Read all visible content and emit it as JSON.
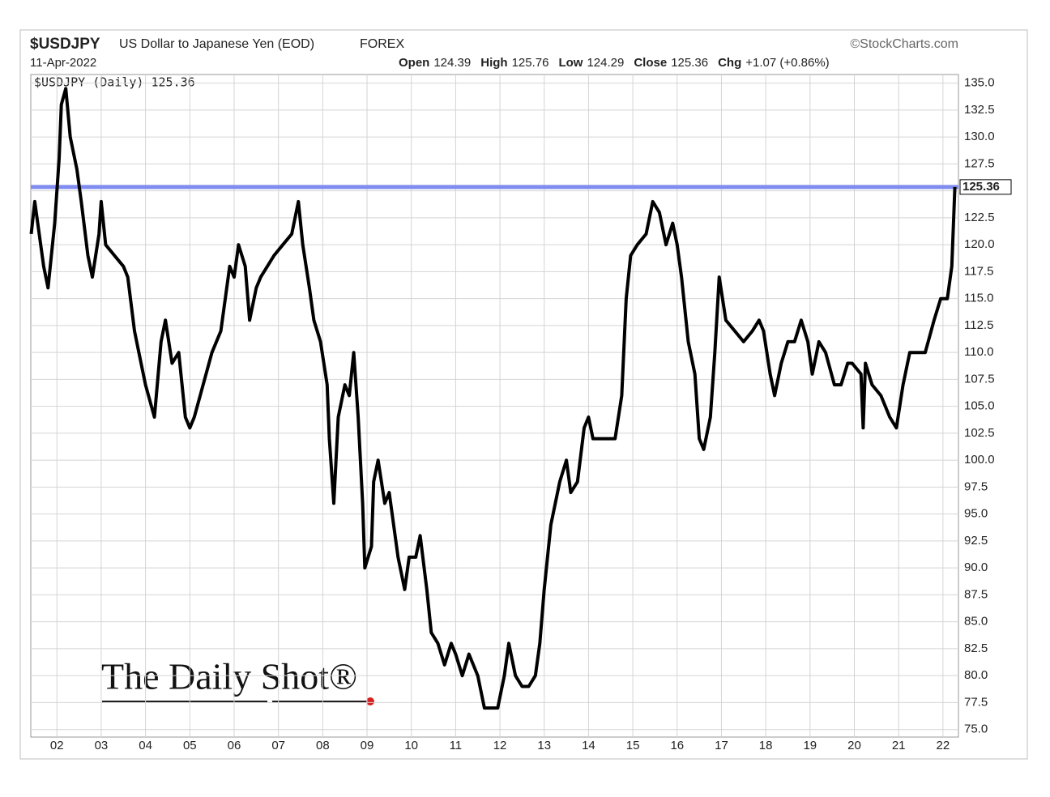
{
  "chart_data": {
    "type": "line",
    "title": "$USDJPY",
    "subtitle": "US Dollar to Japanese Yen (EOD)",
    "exchange": "FOREX",
    "source": "©StockCharts.com",
    "date": "11-Apr-2022",
    "quote": [
      {
        "label": "Open",
        "value": 124.39
      },
      {
        "label": "High",
        "value": 125.76
      },
      {
        "label": "Low",
        "value": 124.29
      },
      {
        "label": "Close",
        "value": 125.36
      },
      {
        "label": "Chg",
        "value": "+1.07 (+0.86%)"
      }
    ],
    "watermark": "The Daily Shot®",
    "last_value": 125.36,
    "last_line_color": "#7f8cf0",
    "grid": true,
    "xlim": [
      2001.41,
      2022.35
    ],
    "ylim": [
      74.3,
      135.8
    ],
    "xticks": [
      {
        "value": 2002,
        "label": "02"
      },
      {
        "value": 2003,
        "label": "03"
      },
      {
        "value": 2004,
        "label": "04"
      },
      {
        "value": 2005,
        "label": "05"
      },
      {
        "value": 2006,
        "label": "06"
      },
      {
        "value": 2007,
        "label": "07"
      },
      {
        "value": 2008,
        "label": "08"
      },
      {
        "value": 2009,
        "label": "09"
      },
      {
        "value": 2010,
        "label": "10"
      },
      {
        "value": 2011,
        "label": "11"
      },
      {
        "value": 2012,
        "label": "12"
      },
      {
        "value": 2013,
        "label": "13"
      },
      {
        "value": 2014,
        "label": "14"
      },
      {
        "value": 2015,
        "label": "15"
      },
      {
        "value": 2016,
        "label": "16"
      },
      {
        "value": 2017,
        "label": "17"
      },
      {
        "value": 2018,
        "label": "18"
      },
      {
        "value": 2019,
        "label": "19"
      },
      {
        "value": 2020,
        "label": "20"
      },
      {
        "value": 2021,
        "label": "21"
      },
      {
        "value": 2022,
        "label": "22"
      }
    ],
    "yticks": [
      {
        "value": 75,
        "label": "75.0"
      },
      {
        "value": 77.5,
        "label": "77.5"
      },
      {
        "value": 80,
        "label": "80.0"
      },
      {
        "value": 82.5,
        "label": "82.5"
      },
      {
        "value": 85,
        "label": "85.0"
      },
      {
        "value": 87.5,
        "label": "87.5"
      },
      {
        "value": 90,
        "label": "90.0"
      },
      {
        "value": 92.5,
        "label": "92.5"
      },
      {
        "value": 95,
        "label": "95.0"
      },
      {
        "value": 97.5,
        "label": "97.5"
      },
      {
        "value": 100,
        "label": "100.0"
      },
      {
        "value": 102.5,
        "label": "102.5"
      },
      {
        "value": 105,
        "label": "105.0"
      },
      {
        "value": 107.5,
        "label": "107.5"
      },
      {
        "value": 110,
        "label": "110.0"
      },
      {
        "value": 112.5,
        "label": "112.5"
      },
      {
        "value": 115,
        "label": "115.0"
      },
      {
        "value": 117.5,
        "label": "117.5"
      },
      {
        "value": 120,
        "label": "120.0"
      },
      {
        "value": 122.5,
        "label": "122.5"
      },
      {
        "value": 125,
        "label": "125.0"
      },
      {
        "value": 127.5,
        "label": "127.5"
      },
      {
        "value": 130,
        "label": "130.0"
      },
      {
        "value": 132.5,
        "label": "132.5"
      },
      {
        "value": 135,
        "label": "135.0"
      }
    ],
    "series": [
      {
        "name": "$USDJPY (Daily) 125.36",
        "color": "#000000",
        "x": [
          2001.42,
          2001.5,
          2001.7,
          2001.8,
          2001.95,
          2002.05,
          2002.1,
          2002.2,
          2002.3,
          2002.45,
          2002.55,
          2002.7,
          2002.8,
          2002.95,
          2003.0,
          2003.1,
          2003.3,
          2003.5,
          2003.6,
          2003.75,
          2003.85,
          2004.0,
          2004.2,
          2004.35,
          2004.45,
          2004.6,
          2004.75,
          2004.9,
          2005.0,
          2005.1,
          2005.3,
          2005.5,
          2005.7,
          2005.9,
          2006.0,
          2006.1,
          2006.25,
          2006.35,
          2006.5,
          2006.6,
          2006.75,
          2006.9,
          2007.1,
          2007.3,
          2007.45,
          2007.55,
          2007.7,
          2007.8,
          2007.95,
          2008.1,
          2008.15,
          2008.25,
          2008.35,
          2008.5,
          2008.6,
          2008.7,
          2008.8,
          2008.9,
          2008.95,
          2009.1,
          2009.15,
          2009.25,
          2009.4,
          2009.5,
          2009.7,
          2009.85,
          2009.95,
          2010.1,
          2010.2,
          2010.35,
          2010.45,
          2010.6,
          2010.75,
          2010.9,
          2011.0,
          2011.15,
          2011.3,
          2011.5,
          2011.65,
          2011.8,
          2011.95,
          2012.1,
          2012.2,
          2012.35,
          2012.5,
          2012.65,
          2012.8,
          2012.9,
          2013.0,
          2013.15,
          2013.35,
          2013.5,
          2013.6,
          2013.75,
          2013.9,
          2014.0,
          2014.1,
          2014.3,
          2014.5,
          2014.6,
          2014.75,
          2014.85,
          2014.95,
          2015.1,
          2015.3,
          2015.45,
          2015.6,
          2015.75,
          2015.9,
          2016.0,
          2016.1,
          2016.25,
          2016.4,
          2016.5,
          2016.6,
          2016.75,
          2016.85,
          2016.95,
          2017.1,
          2017.3,
          2017.5,
          2017.7,
          2017.85,
          2017.95,
          2018.1,
          2018.2,
          2018.35,
          2018.5,
          2018.65,
          2018.8,
          2018.95,
          2019.05,
          2019.2,
          2019.35,
          2019.55,
          2019.7,
          2019.85,
          2019.95,
          2020.15,
          2020.2,
          2020.25,
          2020.4,
          2020.6,
          2020.8,
          2020.95,
          2021.1,
          2021.25,
          2021.45,
          2021.6,
          2021.8,
          2021.95,
          2022.1,
          2022.2,
          2022.27
        ],
        "values": [
          121,
          124,
          118,
          116,
          122,
          128,
          133,
          134.5,
          130,
          127,
          124,
          119,
          117,
          121,
          124,
          120,
          119,
          118,
          117,
          112,
          110,
          107,
          104,
          111,
          113,
          109,
          110,
          104,
          103,
          104,
          107,
          110,
          112,
          118,
          117,
          120,
          118,
          113,
          116,
          117,
          118,
          119,
          120,
          121,
          124,
          120,
          116,
          113,
          111,
          107,
          102,
          96,
          104,
          107,
          106,
          110,
          104,
          96,
          90,
          92,
          98,
          100,
          96,
          97,
          91,
          88,
          91,
          91,
          93,
          88,
          84,
          83,
          81,
          83,
          82,
          80,
          82,
          80,
          77,
          77,
          77,
          80,
          83,
          80,
          79,
          79,
          80,
          83,
          88,
          94,
          98,
          100,
          97,
          98,
          103,
          104,
          102,
          102,
          102,
          102,
          106,
          115,
          119,
          120,
          121,
          124,
          123,
          120,
          122,
          120,
          117,
          111,
          108,
          102,
          101,
          104,
          110,
          117,
          113,
          112,
          111,
          112,
          113,
          112,
          108,
          106,
          109,
          111,
          111,
          113,
          111,
          108,
          111,
          110,
          107,
          107,
          109,
          109,
          108,
          103,
          109,
          107,
          106,
          104,
          103,
          107,
          110,
          110,
          110,
          113,
          115,
          115,
          118,
          125.36
        ]
      }
    ]
  }
}
